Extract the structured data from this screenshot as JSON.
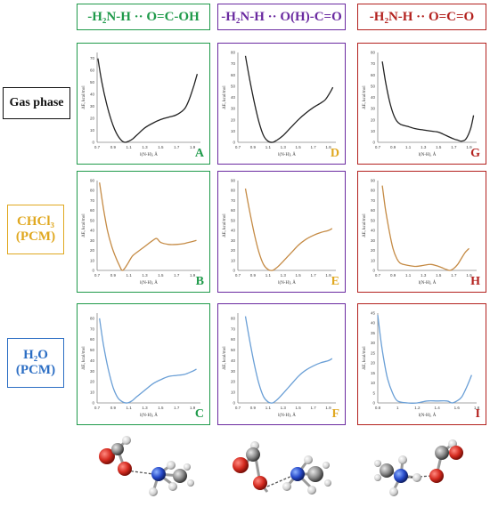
{
  "colors": {
    "green": "#1f9a4a",
    "purple": "#6a2aa0",
    "red": "#b3211e",
    "gold": "#e0a820",
    "blue": "#2c6ec4",
    "black": "#111111",
    "curve_black": "#222222",
    "curve_orange": "#c58b45",
    "curve_blue": "#6a9fd6"
  },
  "headers": [
    {
      "text": "-H₂N-H ·· O=C-OH",
      "color": "#1f9a4a"
    },
    {
      "text": "-H₂N-H ·· O(H)-C=O",
      "color": "#6a2aa0"
    },
    {
      "text": "-H₂N-H ·· O=C=O",
      "color": "#b3211e"
    }
  ],
  "rows": [
    {
      "line1": "Gas phase",
      "line2": "",
      "color": "#111111"
    },
    {
      "line1": "CHCl₃",
      "line2": "(PCM)",
      "color": "#e0a820"
    },
    {
      "line1": "H₂O",
      "line2": "(PCM)",
      "color": "#2c6ec4"
    }
  ],
  "axis_text": {
    "xlabel": "l(N-H), Å",
    "ylabel": "ΔE, kcal/mol"
  },
  "chart_data": [
    {
      "letter": "A",
      "type": "line",
      "xticks": [
        "0.7",
        "0.9",
        "1.1",
        "1.3",
        "1.5",
        "1.7",
        "1.9"
      ],
      "yticks": [
        "0",
        "10",
        "20",
        "30",
        "40",
        "50",
        "60",
        "70"
      ],
      "xlim": [
        0.7,
        2.0
      ],
      "ylim": [
        0,
        75
      ],
      "tag_color": "#1f9a4a",
      "x": [
        0.71,
        0.76,
        0.82,
        0.88,
        0.94,
        1.0,
        1.05,
        1.1,
        1.15,
        1.2,
        1.3,
        1.4,
        1.5,
        1.6,
        1.7,
        1.8,
        1.86,
        1.92,
        1.96
      ],
      "y": [
        70,
        50,
        32,
        18,
        8,
        2,
        0,
        1,
        3,
        6,
        12,
        16,
        19,
        21,
        23,
        28,
        36,
        48,
        57
      ]
    },
    {
      "letter": "D",
      "type": "line",
      "xticks": [
        "0.7",
        "0.9",
        "1.1",
        "1.3",
        "1.5",
        "1.7",
        "1.9"
      ],
      "yticks": [
        "0",
        "10",
        "20",
        "30",
        "40",
        "50",
        "60",
        "70",
        "80"
      ],
      "xlim": [
        0.7,
        2.0
      ],
      "ylim": [
        0,
        80
      ],
      "tag_color": "#e0a820",
      "x": [
        0.8,
        0.86,
        0.92,
        0.98,
        1.04,
        1.1,
        1.16,
        1.22,
        1.3,
        1.4,
        1.5,
        1.6,
        1.7,
        1.8,
        1.86,
        1.92,
        1.96
      ],
      "y": [
        77,
        55,
        35,
        18,
        6,
        1,
        0,
        2,
        6,
        13,
        20,
        26,
        31,
        35,
        38,
        44,
        49
      ]
    },
    {
      "letter": "G",
      "type": "line",
      "xticks": [
        "0.7",
        "0.9",
        "1.1",
        "1.3",
        "1.5",
        "1.7",
        "1.9"
      ],
      "yticks": [
        "0",
        "10",
        "20",
        "30",
        "40",
        "50",
        "60",
        "70",
        "80"
      ],
      "xlim": [
        0.7,
        2.0
      ],
      "ylim": [
        0,
        80
      ],
      "tag_color": "#b3211e",
      "x": [
        0.76,
        0.8,
        0.85,
        0.9,
        0.95,
        1.0,
        1.1,
        1.2,
        1.3,
        1.4,
        1.5,
        1.6,
        1.7,
        1.75,
        1.8,
        1.86,
        1.92,
        1.96
      ],
      "y": [
        72,
        55,
        38,
        26,
        19,
        16,
        14,
        12,
        11,
        10,
        9,
        6,
        3,
        2,
        1,
        3,
        12,
        24
      ]
    },
    {
      "letter": "B",
      "type": "line",
      "xticks": [
        "0.7",
        "0.9",
        "1.1",
        "1.3",
        "1.5",
        "1.7",
        "1.9"
      ],
      "yticks": [
        "0",
        "10",
        "20",
        "30",
        "40",
        "50",
        "60",
        "70",
        "80",
        "90"
      ],
      "xlim": [
        0.7,
        2.0
      ],
      "ylim": [
        0,
        90
      ],
      "tag_color": "#1f9a4a",
      "x": [
        0.73,
        0.78,
        0.83,
        0.88,
        0.93,
        0.98,
        1.02,
        1.08,
        1.14,
        1.2,
        1.3,
        1.4,
        1.45,
        1.5,
        1.6,
        1.7,
        1.8,
        1.9,
        1.95
      ],
      "y": [
        88,
        62,
        40,
        25,
        14,
        5,
        0,
        6,
        14,
        18,
        24,
        30,
        32,
        28,
        26,
        26,
        27,
        29,
        30
      ]
    },
    {
      "letter": "E",
      "type": "line",
      "xticks": [
        "0.7",
        "0.9",
        "1.1",
        "1.3",
        "1.5",
        "1.7",
        "1.9"
      ],
      "yticks": [
        "0",
        "10",
        "20",
        "30",
        "40",
        "50",
        "60",
        "70",
        "80",
        "90"
      ],
      "xlim": [
        0.7,
        2.0
      ],
      "ylim": [
        0,
        90
      ],
      "tag_color": "#e0a820",
      "x": [
        0.8,
        0.86,
        0.92,
        0.98,
        1.04,
        1.1,
        1.16,
        1.22,
        1.3,
        1.4,
        1.5,
        1.6,
        1.7,
        1.8,
        1.9,
        1.95
      ],
      "y": [
        82,
        58,
        36,
        18,
        6,
        1,
        0,
        3,
        9,
        17,
        25,
        31,
        35,
        38,
        40,
        42
      ]
    },
    {
      "letter": "H",
      "type": "line",
      "xticks": [
        "0.7",
        "0.9",
        "1.1",
        "1.3",
        "1.5",
        "1.7",
        "1.9"
      ],
      "yticks": [
        "0",
        "10",
        "20",
        "30",
        "40",
        "50",
        "60",
        "70",
        "80",
        "90"
      ],
      "xlim": [
        0.7,
        2.0
      ],
      "ylim": [
        0,
        90
      ],
      "tag_color": "#b3211e",
      "x": [
        0.76,
        0.8,
        0.85,
        0.9,
        0.95,
        1.0,
        1.1,
        1.2,
        1.3,
        1.4,
        1.5,
        1.6,
        1.65,
        1.7,
        1.75,
        1.8,
        1.85,
        1.9
      ],
      "y": [
        85,
        62,
        40,
        22,
        12,
        7,
        5,
        4,
        5,
        6,
        4,
        1,
        0,
        2,
        6,
        12,
        18,
        22
      ]
    },
    {
      "letter": "C",
      "type": "line",
      "xticks": [
        "0.7",
        "0.9",
        "1.1",
        "1.3",
        "1.5",
        "1.7",
        "1.9"
      ],
      "yticks": [
        "0",
        "10",
        "20",
        "30",
        "40",
        "50",
        "60",
        "70",
        "80"
      ],
      "xlim": [
        0.7,
        2.0
      ],
      "ylim": [
        0,
        85
      ],
      "tag_color": "#1f9a4a",
      "x": [
        0.73,
        0.78,
        0.84,
        0.9,
        0.96,
        1.02,
        1.08,
        1.14,
        1.2,
        1.3,
        1.4,
        1.5,
        1.6,
        1.7,
        1.8,
        1.9,
        1.95
      ],
      "y": [
        80,
        55,
        32,
        15,
        5,
        1,
        0,
        2,
        6,
        12,
        18,
        22,
        25,
        26,
        27,
        30,
        32
      ]
    },
    {
      "letter": "F",
      "type": "line",
      "xticks": [
        "0.7",
        "0.9",
        "1.1",
        "1.3",
        "1.5",
        "1.7",
        "1.9"
      ],
      "yticks": [
        "0",
        "10",
        "20",
        "30",
        "40",
        "50",
        "60",
        "70",
        "80"
      ],
      "xlim": [
        0.7,
        2.0
      ],
      "ylim": [
        0,
        85
      ],
      "tag_color": "#e0a820",
      "x": [
        0.8,
        0.86,
        0.92,
        0.98,
        1.04,
        1.1,
        1.16,
        1.22,
        1.3,
        1.4,
        1.5,
        1.6,
        1.7,
        1.8,
        1.9,
        1.95
      ],
      "y": [
        82,
        58,
        36,
        18,
        6,
        1,
        0,
        3,
        9,
        17,
        25,
        31,
        35,
        38,
        40,
        42
      ]
    },
    {
      "letter": "I",
      "type": "line",
      "xticks": [
        "0.8",
        "1",
        "1.2",
        "1.4",
        "1.6",
        "1.8"
      ],
      "yticks": [
        "0",
        "5",
        "10",
        "15",
        "20",
        "25",
        "30",
        "35",
        "40",
        "45"
      ],
      "xlim": [
        0.8,
        1.8
      ],
      "ylim": [
        0,
        45
      ],
      "tag_color": "#b3211e",
      "x": [
        0.8,
        0.83,
        0.86,
        0.9,
        0.95,
        1.0,
        1.1,
        1.2,
        1.3,
        1.4,
        1.5,
        1.55,
        1.6,
        1.65,
        1.7,
        1.75
      ],
      "y": [
        44,
        32,
        22,
        12,
        5,
        1,
        0,
        0,
        1,
        1,
        1,
        0,
        1,
        3,
        8,
        14
      ]
    }
  ]
}
